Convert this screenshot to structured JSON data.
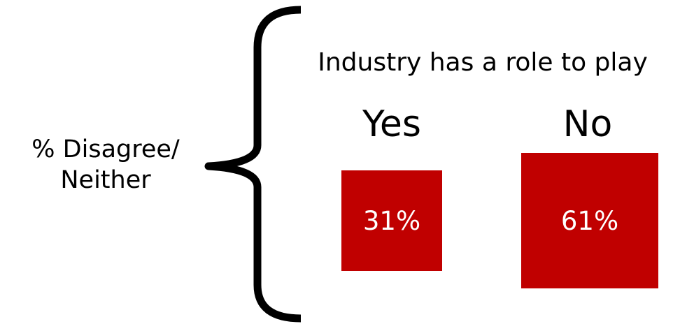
{
  "side_label": {
    "line1": "% Disagree/",
    "line2": "Neither"
  },
  "heading": "Industry has a role to play",
  "columns": [
    {
      "label": "Yes",
      "value": 31,
      "value_text": "31%"
    },
    {
      "label": "No",
      "value": 61,
      "value_text": "61%"
    }
  ],
  "colors": {
    "box_fill": "#c00000",
    "box_text": "#ffffff",
    "text": "#000000"
  }
}
